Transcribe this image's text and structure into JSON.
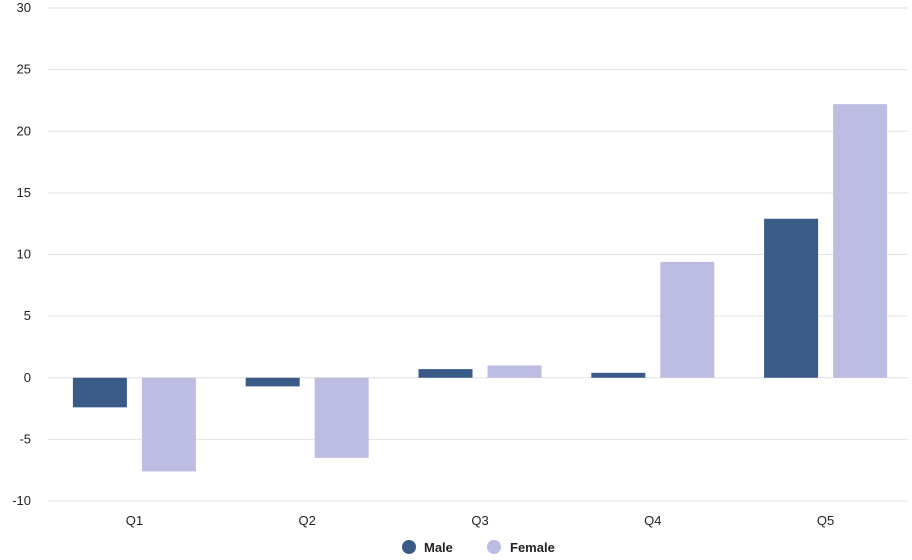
{
  "chart_data": {
    "type": "bar",
    "categories": [
      "Q1",
      "Q2",
      "Q3",
      "Q4",
      "Q5"
    ],
    "series": [
      {
        "name": "Male",
        "values": [
          -2.4,
          -0.7,
          0.7,
          0.4,
          12.9
        ]
      },
      {
        "name": "Female",
        "values": [
          -7.6,
          -6.5,
          1.0,
          9.4,
          22.2
        ]
      }
    ],
    "yticks": [
      "30",
      "25",
      "20",
      "15",
      "10",
      "5",
      "0",
      "-5",
      "-10"
    ],
    "ylim": [
      -10,
      30
    ],
    "grid": true,
    "legend_position": "bottom-center",
    "colors": {
      "Male": "#3a5a88",
      "Female": "#bdbde3",
      "grid": "#e2e2e2"
    }
  }
}
